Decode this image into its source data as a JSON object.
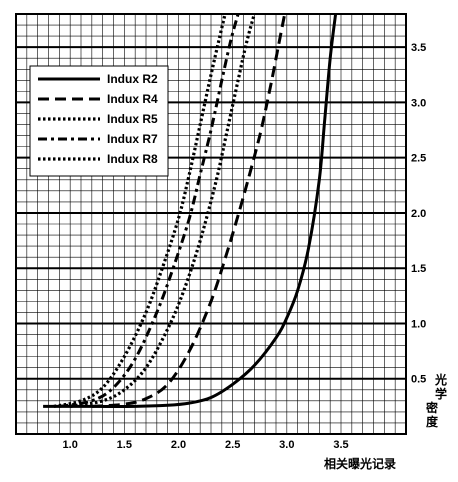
{
  "chart_data": {
    "type": "line",
    "title": "",
    "xlabel": "相关曝光记录",
    "ylabel": "光学密度",
    "xlim": [
      0.5,
      4.1
    ],
    "ylim": [
      0,
      3.8
    ],
    "xticks": [
      1.0,
      1.5,
      2.0,
      2.5,
      3.0,
      3.5
    ],
    "xtick_labels": [
      "1.0",
      "1.5",
      "2.0",
      "2.5",
      "3.0",
      "3.5"
    ],
    "yticks": [
      0.5,
      1.0,
      1.5,
      2.0,
      2.5,
      3.0,
      3.5
    ],
    "ytick_labels": [
      "0.5",
      "1.0",
      "1.5",
      "2.0",
      "2.5",
      "3.0",
      "3.5"
    ],
    "grid": true,
    "legend_position": "top-left",
    "series": [
      {
        "name": "Indux R2",
        "style": "solid",
        "x": [
          0.75,
          1.2,
          1.6,
          1.9,
          2.1,
          2.3,
          2.5,
          2.7,
          2.9,
          3.0,
          3.1,
          3.2,
          3.3,
          3.35,
          3.4,
          3.45
        ],
        "y": [
          0.25,
          0.25,
          0.25,
          0.26,
          0.28,
          0.33,
          0.45,
          0.62,
          0.87,
          1.05,
          1.3,
          1.68,
          2.3,
          2.85,
          3.4,
          3.8
        ]
      },
      {
        "name": "Indux R4",
        "style": "dashed",
        "x": [
          1.2,
          1.5,
          1.7,
          1.9,
          2.1,
          2.3,
          2.45,
          2.6,
          2.75,
          2.85,
          2.92,
          2.98
        ],
        "y": [
          0.25,
          0.27,
          0.32,
          0.45,
          0.75,
          1.2,
          1.65,
          2.15,
          2.7,
          3.15,
          3.5,
          3.8
        ]
      },
      {
        "name": "Indux R5",
        "style": "dotted",
        "x": [
          1.0,
          1.3,
          1.5,
          1.7,
          1.9,
          2.05,
          2.2,
          2.35,
          2.45,
          2.55,
          2.63,
          2.7
        ],
        "y": [
          0.25,
          0.3,
          0.4,
          0.6,
          0.95,
          1.3,
          1.75,
          2.3,
          2.75,
          3.2,
          3.55,
          3.8
        ]
      },
      {
        "name": "Indux R7",
        "style": "dashdot",
        "x": [
          0.9,
          1.2,
          1.4,
          1.6,
          1.8,
          1.95,
          2.1,
          2.2,
          2.3,
          2.4,
          2.48,
          2.55
        ],
        "y": [
          0.25,
          0.3,
          0.42,
          0.68,
          1.1,
          1.5,
          1.95,
          2.35,
          2.75,
          3.2,
          3.55,
          3.8
        ]
      },
      {
        "name": "Indux R8",
        "style": "dotted",
        "x": [
          0.85,
          1.1,
          1.3,
          1.5,
          1.7,
          1.85,
          2.0,
          2.1,
          2.2,
          2.3,
          2.37,
          2.43
        ],
        "y": [
          0.25,
          0.3,
          0.42,
          0.7,
          1.1,
          1.5,
          1.95,
          2.35,
          2.8,
          3.25,
          3.55,
          3.8
        ]
      }
    ]
  }
}
